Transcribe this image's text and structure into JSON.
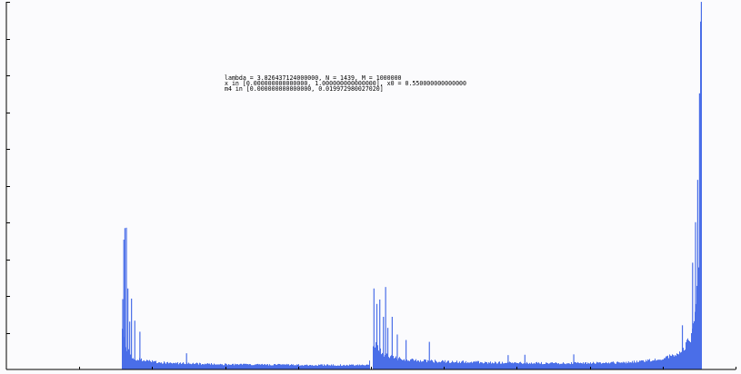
{
  "chart_data": {
    "type": "bar",
    "title": "",
    "xlabel": "",
    "ylabel": "",
    "annotation_lines": [
      "lambda = 3.826437124000000, N =    1439, M =    1000000",
      "x  in [0.000000000000000, 1.000000000000000], x0 = 0.550000000000000",
      "m4 in [0.000000000000000, 0.019972980027020]"
    ],
    "bar_color": "#4a6ee8",
    "xlim": [
      0,
      1
    ],
    "ylim": [
      0,
      0.01997298
    ],
    "x_ticks": 10,
    "y_ticks": 10,
    "grid": false,
    "legend": "none",
    "support_intervals": [
      [
        0.1578,
        0.497
      ],
      [
        0.502,
        0.953
      ]
    ],
    "envelope": {
      "x": [
        0.1578,
        0.16,
        0.163,
        0.167,
        0.172,
        0.18,
        0.195,
        0.22,
        0.26,
        0.3,
        0.34,
        0.38,
        0.42,
        0.46,
        0.49,
        0.497,
        0.502,
        0.505,
        0.51,
        0.52,
        0.54,
        0.57,
        0.6,
        0.65,
        0.7,
        0.75,
        0.8,
        0.84,
        0.87,
        0.89,
        0.905,
        0.915,
        0.925,
        0.933,
        0.938,
        0.942,
        0.945,
        0.948,
        0.951,
        0.953
      ],
      "y": [
        0.00255,
        0.002,
        0.0014,
        0.001,
        0.00072,
        0.00055,
        0.00045,
        0.00036,
        0.00032,
        0.00028,
        0.00026,
        0.00026,
        0.00024,
        0.00024,
        0.00023,
        0.00023,
        0.00158,
        0.00135,
        0.0011,
        0.00075,
        0.00058,
        0.00048,
        0.00043,
        0.00039,
        0.00035,
        0.00034,
        0.00035,
        0.00038,
        0.00044,
        0.00052,
        0.00065,
        0.0008,
        0.00105,
        0.00135,
        0.0017,
        0.0022,
        0.003,
        0.0045,
        0.0068,
        0.01
      ]
    },
    "spikes": [
      {
        "x": 0.1595,
        "y": 0.00382
      },
      {
        "x": 0.161,
        "y": 0.00705
      },
      {
        "x": 0.1625,
        "y": 0.00768
      },
      {
        "x": 0.1645,
        "y": 0.0077
      },
      {
        "x": 0.1665,
        "y": 0.0044
      },
      {
        "x": 0.169,
        "y": 0.0026
      },
      {
        "x": 0.1715,
        "y": 0.00385
      },
      {
        "x": 0.176,
        "y": 0.00265
      },
      {
        "x": 0.183,
        "y": 0.00205
      },
      {
        "x": 0.247,
        "y": 0.00088
      },
      {
        "x": 0.504,
        "y": 0.0044
      },
      {
        "x": 0.508,
        "y": 0.00356
      },
      {
        "x": 0.512,
        "y": 0.0038
      },
      {
        "x": 0.517,
        "y": 0.00286
      },
      {
        "x": 0.52,
        "y": 0.00448
      },
      {
        "x": 0.523,
        "y": 0.00226
      },
      {
        "x": 0.529,
        "y": 0.00286
      },
      {
        "x": 0.536,
        "y": 0.0019
      },
      {
        "x": 0.548,
        "y": 0.0016
      },
      {
        "x": 0.58,
        "y": 0.0015
      },
      {
        "x": 0.688,
        "y": 0.00078
      },
      {
        "x": 0.711,
        "y": 0.0008
      },
      {
        "x": 0.778,
        "y": 0.00082
      },
      {
        "x": 0.927,
        "y": 0.0024
      },
      {
        "x": 0.941,
        "y": 0.0058
      },
      {
        "x": 0.945,
        "y": 0.008
      },
      {
        "x": 0.948,
        "y": 0.0103
      },
      {
        "x": 0.9505,
        "y": 0.015
      },
      {
        "x": 0.952,
        "y": 0.0189
      },
      {
        "x": 0.953,
        "y": 0.01997
      }
    ]
  }
}
